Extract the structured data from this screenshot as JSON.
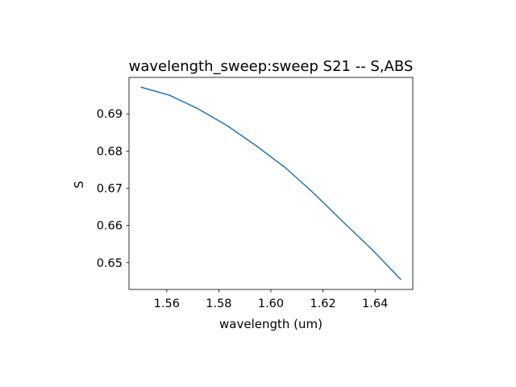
{
  "chart_data": {
    "type": "line",
    "title": "wavelength_sweep:sweep S21 -- S,ABS",
    "xlabel": "wavelength (um)",
    "ylabel": "S",
    "xlim": [
      1.5455,
      1.6545
    ],
    "ylim": [
      0.6428,
      0.6998
    ],
    "xticks": [
      1.56,
      1.58,
      1.6,
      1.62,
      1.64
    ],
    "xtick_labels": [
      "1.56",
      "1.58",
      "1.60",
      "1.62",
      "1.64"
    ],
    "yticks": [
      0.65,
      0.66,
      0.67,
      0.68,
      0.69
    ],
    "ytick_labels": [
      "0.65",
      "0.66",
      "0.67",
      "0.68",
      "0.69"
    ],
    "grid": false,
    "series": [
      {
        "color": "#1f77b4",
        "x": [
          1.55,
          1.5611,
          1.5722,
          1.5833,
          1.5944,
          1.6056,
          1.6167,
          1.6278,
          1.6389,
          1.65
        ],
        "y": [
          0.6972,
          0.695,
          0.6913,
          0.6868,
          0.6814,
          0.6755,
          0.6685,
          0.6609,
          0.6535,
          0.6454
        ]
      }
    ]
  }
}
